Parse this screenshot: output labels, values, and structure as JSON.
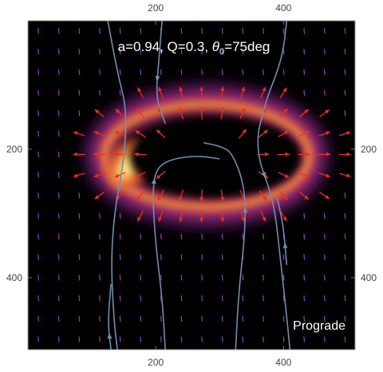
{
  "chart_data": {
    "type": "heatmap",
    "title": "a=0.94, Q=0.3, θ0=75deg",
    "title_parts": {
      "prefix": "a=0.94, Q=0.3, ",
      "symbol": "θ",
      "subscript": "0",
      "suffix": "=75deg"
    },
    "annotation": "Prograde",
    "xlim": [
      0,
      512
    ],
    "ylim": [
      512,
      0
    ],
    "x_ticks": [
      200,
      400
    ],
    "y_ticks": [
      200,
      400
    ],
    "grid": false,
    "colormap": [
      "#000000",
      "#2a0a4a",
      "#6a1a7a",
      "#b5306a",
      "#e8603a",
      "#f8a53a",
      "#fde58a"
    ],
    "intensity_peak": {
      "x": 150,
      "y": 230
    },
    "ring": {
      "center": [
        280,
        210
      ],
      "radius_x": 160,
      "radius_y": 80
    },
    "arrow_colors": {
      "background": "#9b3cc8",
      "ring": "#e83020"
    },
    "streamline_color": "#6f8fb0",
    "streamlines": [
      {
        "points": [
          [
            125,
            0
          ],
          [
            140,
            80
          ],
          [
            155,
            140
          ],
          [
            150,
            220
          ],
          [
            135,
            300
          ],
          [
            130,
            380
          ],
          [
            135,
            470
          ],
          [
            140,
            512
          ]
        ]
      },
      {
        "points": [
          [
            215,
            512
          ],
          [
            210,
            430
          ],
          [
            200,
            350
          ],
          [
            195,
            270
          ],
          [
            200,
            230
          ],
          [
            225,
            215
          ],
          [
            265,
            210
          ],
          [
            300,
            215
          ]
        ]
      },
      {
        "points": [
          [
            325,
            512
          ],
          [
            330,
            420
          ],
          [
            340,
            330
          ],
          [
            340,
            260
          ],
          [
            320,
            205
          ],
          [
            300,
            195
          ],
          [
            275,
            190
          ]
        ]
      },
      {
        "points": [
          [
            405,
            0
          ],
          [
            398,
            60
          ],
          [
            370,
            130
          ],
          [
            355,
            200
          ],
          [
            385,
            280
          ],
          [
            395,
            370
          ],
          [
            405,
            460
          ],
          [
            410,
            512
          ]
        ]
      },
      {
        "points": [
          [
            210,
            0
          ],
          [
            205,
            60
          ],
          [
            200,
            120
          ],
          [
            215,
            160
          ]
        ]
      },
      {
        "points": [
          [
            130,
            512
          ],
          [
            125,
            470
          ],
          [
            130,
            410
          ]
        ]
      },
      {
        "points": [
          [
            405,
            380
          ],
          [
            400,
            320
          ],
          [
            390,
            275
          ]
        ]
      }
    ]
  }
}
